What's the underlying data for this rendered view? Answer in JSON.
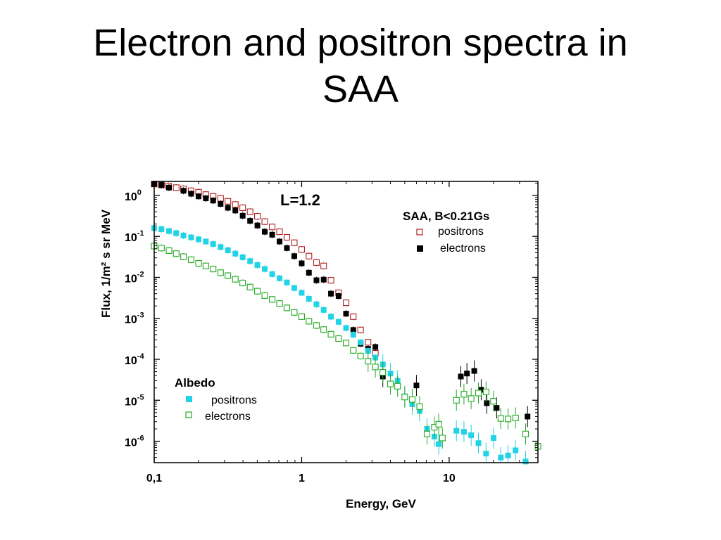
{
  "slide": {
    "title_line1": "Electron and positron spectra in",
    "title_line2": "SAA"
  },
  "chart_data": {
    "type": "scatter",
    "xlabel": "Energy, GeV",
    "ylabel": "Flux, 1/m² s sr MeV",
    "xscale": "log",
    "yscale": "log",
    "xlim": [
      0.1,
      40
    ],
    "ylim": [
      3e-07,
      2.2
    ],
    "xticks": [
      {
        "value": 0.1,
        "label": "0,1"
      },
      {
        "value": 1,
        "label": "1"
      },
      {
        "value": 10,
        "label": "10"
      }
    ],
    "yticks": [
      {
        "value": 1,
        "base": "10",
        "exp": "0"
      },
      {
        "value": 0.1,
        "base": "10",
        "exp": "-1"
      },
      {
        "value": 0.01,
        "base": "10",
        "exp": "-2"
      },
      {
        "value": 0.001,
        "base": "10",
        "exp": "-3"
      },
      {
        "value": 0.0001,
        "base": "10",
        "exp": "-4"
      },
      {
        "value": 1e-05,
        "base": "10",
        "exp": "-5"
      },
      {
        "value": 1e-06,
        "base": "10",
        "exp": "-6"
      }
    ],
    "annotation": "L=1.2",
    "legend_saa_title": "SAA, B<0.21Gs",
    "legend_albedo_title": "Albedo",
    "grid": false,
    "series": [
      {
        "name": "positrons",
        "group": "SAA",
        "marker": "open-square",
        "color": "#b22222",
        "points": [
          [
            0.1,
            1.9
          ],
          [
            0.112,
            1.8
          ],
          [
            0.125,
            1.7
          ],
          [
            0.141,
            1.55
          ],
          [
            0.158,
            1.45
          ],
          [
            0.178,
            1.3
          ],
          [
            0.2,
            1.2
          ],
          [
            0.224,
            1.05
          ],
          [
            0.251,
            0.95
          ],
          [
            0.282,
            0.85
          ],
          [
            0.316,
            0.72
          ],
          [
            0.355,
            0.6
          ],
          [
            0.398,
            0.5
          ],
          [
            0.447,
            0.4
          ],
          [
            0.501,
            0.31
          ],
          [
            0.562,
            0.23
          ],
          [
            0.631,
            0.17
          ],
          [
            0.708,
            0.13
          ],
          [
            0.794,
            0.095
          ],
          [
            0.891,
            0.07
          ],
          [
            1.0,
            0.048
          ],
          [
            1.12,
            0.033
          ],
          [
            1.26,
            0.023
          ],
          [
            1.41,
            0.019
          ],
          [
            1.58,
            0.0085
          ],
          [
            1.78,
            0.0042
          ],
          [
            2.0,
            0.0024
          ],
          [
            2.24,
            0.0011
          ],
          [
            2.51,
            0.00052
          ],
          [
            2.82,
            0.00026
          ],
          [
            3.16,
            0.00014
          ]
        ]
      },
      {
        "name": "electrons",
        "group": "SAA",
        "marker": "filled-square",
        "color": "#000000",
        "points": [
          [
            0.1,
            1.9
          ],
          [
            0.112,
            1.8
          ],
          [
            0.126,
            1.55
          ],
          [
            0.158,
            1.3
          ],
          [
            0.178,
            1.1
          ],
          [
            0.2,
            0.95
          ],
          [
            0.224,
            0.85
          ],
          [
            0.251,
            0.75
          ],
          [
            0.282,
            0.62
          ],
          [
            0.316,
            0.5
          ],
          [
            0.355,
            0.43
          ],
          [
            0.398,
            0.32
          ],
          [
            0.447,
            0.24
          ],
          [
            0.501,
            0.185
          ],
          [
            0.562,
            0.13
          ],
          [
            0.631,
            0.11
          ],
          [
            0.708,
            0.075
          ],
          [
            0.794,
            0.052
          ],
          [
            0.891,
            0.033
          ],
          [
            1.0,
            0.022
          ],
          [
            1.12,
            0.013
          ],
          [
            1.26,
            0.0085
          ],
          [
            1.41,
            0.0088
          ],
          [
            1.58,
            0.004
          ],
          [
            1.78,
            0.0035
          ],
          [
            2.0,
            0.0013
          ],
          [
            2.24,
            0.00052
          ],
          [
            2.51,
            0.00024
          ],
          [
            2.82,
            0.00018
          ],
          [
            3.16,
            0.0002
          ],
          [
            3.55,
            3.8e-05
          ],
          [
            6.0,
            2.3e-05
          ],
          [
            12.0,
            3.8e-05
          ],
          [
            13.2,
            4.5e-05
          ],
          [
            14.8,
            5.2e-05
          ],
          [
            16.5,
            1.8e-05
          ],
          [
            18.0,
            8.5e-06
          ],
          [
            21.0,
            6.5e-06
          ],
          [
            34.0,
            4e-06
          ]
        ]
      },
      {
        "name": "positrons",
        "group": "Albedo",
        "marker": "filled-square",
        "color": "#22d3e6",
        "points": [
          [
            0.1,
            0.16
          ],
          [
            0.112,
            0.15
          ],
          [
            0.126,
            0.135
          ],
          [
            0.141,
            0.12
          ],
          [
            0.158,
            0.105
          ],
          [
            0.178,
            0.095
          ],
          [
            0.2,
            0.085
          ],
          [
            0.224,
            0.075
          ],
          [
            0.251,
            0.065
          ],
          [
            0.282,
            0.055
          ],
          [
            0.316,
            0.046
          ],
          [
            0.355,
            0.038
          ],
          [
            0.398,
            0.031
          ],
          [
            0.447,
            0.025
          ],
          [
            0.501,
            0.02
          ],
          [
            0.562,
            0.016
          ],
          [
            0.631,
            0.012
          ],
          [
            0.708,
            0.0095
          ],
          [
            0.794,
            0.0075
          ],
          [
            0.891,
            0.0055
          ],
          [
            1.0,
            0.0042
          ],
          [
            1.12,
            0.003
          ],
          [
            1.26,
            0.0022
          ],
          [
            1.41,
            0.0016
          ],
          [
            1.58,
            0.0011
          ],
          [
            1.78,
            0.00082
          ],
          [
            2.0,
            0.00058
          ],
          [
            2.24,
            0.0004
          ],
          [
            2.51,
            0.00026
          ],
          [
            2.82,
            0.00016
          ],
          [
            3.16,
            0.00011
          ],
          [
            3.55,
            7.5e-05
          ],
          [
            4.0,
            4.5e-05
          ],
          [
            4.47,
            3e-05
          ],
          [
            5.0,
            1.25e-05
          ],
          [
            5.62,
            8e-06
          ],
          [
            6.31,
            5.5e-06
          ],
          [
            7.08,
            2e-06
          ],
          [
            7.94,
            1.3e-06
          ],
          [
            8.5,
            8.5e-07
          ],
          [
            11.2,
            1.8e-06
          ],
          [
            12.6,
            1.7e-06
          ],
          [
            14.1,
            1.4e-06
          ],
          [
            15.8,
            9e-07
          ],
          [
            17.8,
            5e-07
          ],
          [
            20.0,
            1.2e-06
          ],
          [
            22.4,
            4e-07
          ],
          [
            25.1,
            4.5e-07
          ],
          [
            28.2,
            6e-07
          ],
          [
            33.0,
            3.2e-07
          ]
        ]
      },
      {
        "name": "electrons",
        "group": "Albedo",
        "marker": "open-square",
        "color": "#22aa22",
        "points": [
          [
            0.1,
            0.058
          ],
          [
            0.112,
            0.052
          ],
          [
            0.126,
            0.045
          ],
          [
            0.141,
            0.038
          ],
          [
            0.158,
            0.032
          ],
          [
            0.178,
            0.027
          ],
          [
            0.2,
            0.022
          ],
          [
            0.224,
            0.019
          ],
          [
            0.251,
            0.016
          ],
          [
            0.282,
            0.013
          ],
          [
            0.316,
            0.011
          ],
          [
            0.355,
            0.009
          ],
          [
            0.398,
            0.0073
          ],
          [
            0.447,
            0.0058
          ],
          [
            0.501,
            0.0046
          ],
          [
            0.562,
            0.0036
          ],
          [
            0.631,
            0.0029
          ],
          [
            0.708,
            0.0023
          ],
          [
            0.794,
            0.0018
          ],
          [
            0.891,
            0.0014
          ],
          [
            1.0,
            0.0011
          ],
          [
            1.12,
            0.00085
          ],
          [
            1.26,
            0.00067
          ],
          [
            1.41,
            0.00053
          ],
          [
            1.58,
            0.00041
          ],
          [
            1.78,
            0.00032
          ],
          [
            2.0,
            0.00025
          ],
          [
            2.24,
            0.000165
          ],
          [
            2.51,
            0.00012
          ],
          [
            2.82,
            9e-05
          ],
          [
            3.16,
            6.5e-05
          ],
          [
            3.55,
            4.8e-05
          ],
          [
            4.0,
            2.5e-05
          ],
          [
            4.47,
            2.2e-05
          ],
          [
            5.0,
            1.2e-05
          ],
          [
            5.62,
            1.05e-05
          ],
          [
            6.31,
            7e-06
          ],
          [
            7.08,
            1.5e-06
          ],
          [
            7.94,
            2.2e-06
          ],
          [
            8.5,
            2.6e-06
          ],
          [
            9.0,
            1.2e-06
          ],
          [
            11.2,
            1e-05
          ],
          [
            12.6,
            1.4e-05
          ],
          [
            14.1,
            1.1e-05
          ],
          [
            15.8,
            1.5e-05
          ],
          [
            17.8,
            1.6e-05
          ],
          [
            20.0,
            9.5e-06
          ],
          [
            22.4,
            3.6e-06
          ],
          [
            25.1,
            3.5e-06
          ],
          [
            28.2,
            3.7e-06
          ],
          [
            33.0,
            1.5e-06
          ],
          [
            40.0,
            7.5e-07
          ]
        ]
      }
    ]
  }
}
